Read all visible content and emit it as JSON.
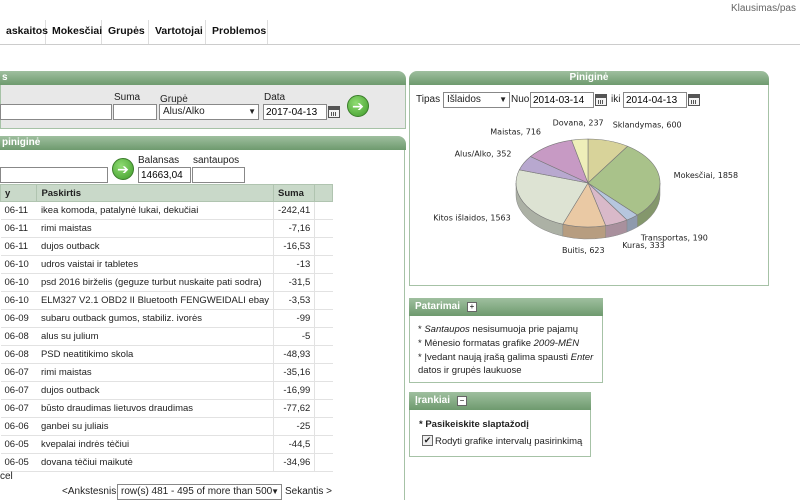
{
  "topright": "Klausimas/pas",
  "nav": [
    "askaitos",
    "Mokesčiai",
    "Grupės",
    "Vartotojai",
    "Problemos"
  ],
  "form": {
    "header": "s",
    "suma_label": "Suma",
    "grupe_label": "Grupė",
    "grupe_value": "Alus/Alko",
    "data_label": "Data",
    "data_value": "2017-04-13"
  },
  "wallet_left": {
    "header": "piniginė",
    "balansas_label": "Balansas",
    "balansas_value": "14663,04",
    "santaupos_label": "santaupos"
  },
  "table": {
    "col_date": "y",
    "col_desc": "Paskirtis",
    "col_sum": "Suma",
    "rows": [
      {
        "date": "06-11",
        "desc": "ikea komoda, patalynė lukai, dekučiai",
        "sum": "-242,41"
      },
      {
        "date": "06-11",
        "desc": "rimi maistas",
        "sum": "-7,16"
      },
      {
        "date": "06-11",
        "desc": "dujos outback",
        "sum": "-16,53"
      },
      {
        "date": "06-10",
        "desc": "udros vaistai ir tabletes",
        "sum": "-13"
      },
      {
        "date": "06-10",
        "desc": "psd 2016 birželis (geguze turbut nuskaite pati sodra)",
        "sum": "-31,5"
      },
      {
        "date": "06-10",
        "desc": "ELM327 V2.1 OBD2 II Bluetooth FENGWEIDALI ebay",
        "sum": "-3,53"
      },
      {
        "date": "06-09",
        "desc": "subaru outback gumos, stabiliz. ivorės",
        "sum": "-99"
      },
      {
        "date": "06-08",
        "desc": "alus su julium",
        "sum": "-5"
      },
      {
        "date": "06-08",
        "desc": "PSD neatitikimo skola",
        "sum": "-48,93"
      },
      {
        "date": "06-07",
        "desc": "rimi maistas",
        "sum": "-35,16"
      },
      {
        "date": "06-07",
        "desc": "dujos outback",
        "sum": "-16,99"
      },
      {
        "date": "06-07",
        "desc": "būsto draudimas lietuvos draudimas",
        "sum": "-77,62"
      },
      {
        "date": "06-06",
        "desc": "ganbei su juliais",
        "sum": "-25"
      },
      {
        "date": "06-05",
        "desc": "kvepalai indrės tėčiui",
        "sum": "-44,5"
      },
      {
        "date": "06-05",
        "desc": "dovana tėčiui maikutė",
        "sum": "-34,96"
      }
    ],
    "cancel_label": "cel"
  },
  "pagination": {
    "prev": "<Ankstesnis",
    "range": "row(s) 481 - 495 of more than 500",
    "next": "Sekantis >"
  },
  "wallet_right": {
    "header": "Piniginė",
    "tipas_label": "Tipas",
    "tipas_value": "Išlaidos",
    "nuo_label": "Nuo",
    "nuo_value": "2014-03-14",
    "iki_label": "iki",
    "iki_value": "2014-04-13"
  },
  "chart_data": {
    "type": "pie",
    "slices": [
      {
        "label": "Sklandymas, 600",
        "value": 600,
        "color": "#d8d39a"
      },
      {
        "label": "Mokesčiai, 1858",
        "value": 1858,
        "color": "#a9c28a"
      },
      {
        "label": "Transportas, 190",
        "value": 190,
        "color": "#b6c6de"
      },
      {
        "label": "Kuras, 333",
        "value": 333,
        "color": "#d9b9c9"
      },
      {
        "label": "Buitis, 623",
        "value": 623,
        "color": "#eac9a4"
      },
      {
        "label": "Kitos išlaidos, 1563",
        "value": 1563,
        "color": "#dde3d3"
      },
      {
        "label": "Alus/Alko, 352",
        "value": 352,
        "color": "#b8a8cf"
      },
      {
        "label": "Maistas, 716",
        "value": 716,
        "color": "#c79ac4"
      },
      {
        "label": "Dovana, 237",
        "value": 237,
        "color": "#eeeeb9"
      }
    ]
  },
  "tips": {
    "header": "Patarimai",
    "line1_em": "Santaupos",
    "line1_rest": " nesisumuoja prie pajamų",
    "line2_pre": "Mėnesio formatas grafike ",
    "line2_em": "2009-MĖN",
    "line3_pre": "Įvedant naują įrašą galima spausti ",
    "line3_em": "Enter",
    "line3_cont": "datos ir grupės laukuose"
  },
  "tools": {
    "header": "Įrankiai",
    "change_password": "Pasikeiskite slaptažodį",
    "show_interval": "Rodyti grafike intervalų pasirinkimą",
    "show_interval_checked": true
  }
}
